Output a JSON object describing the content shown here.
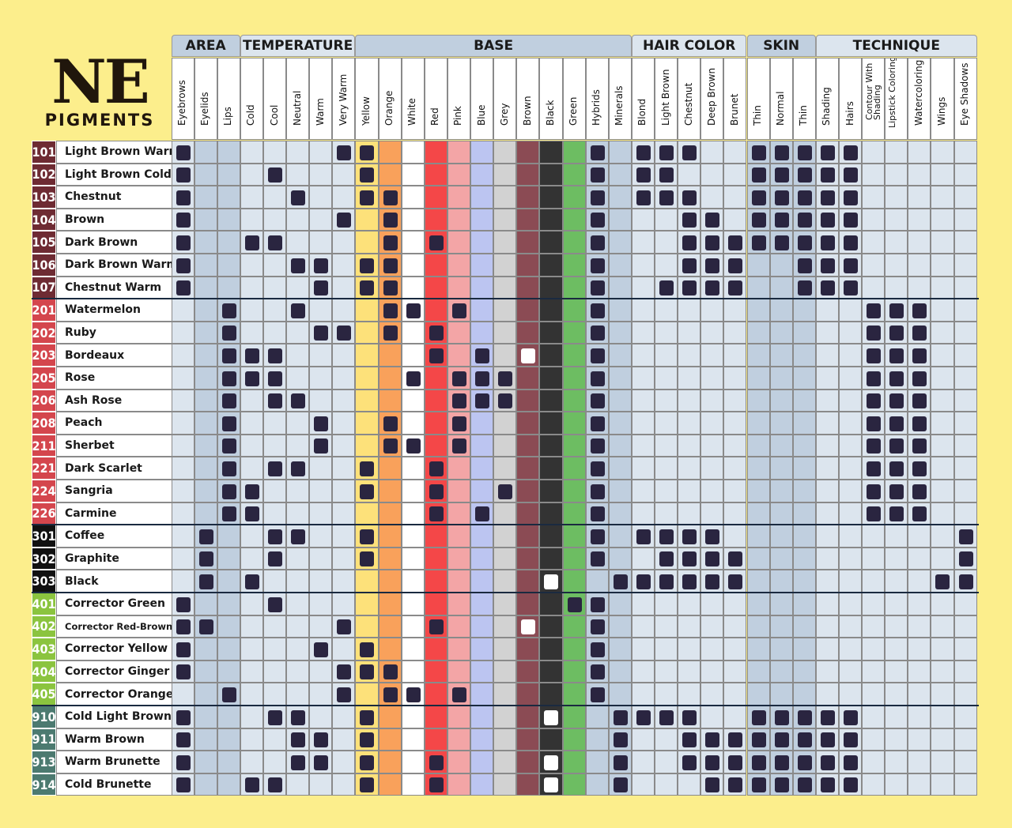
{
  "logo": {
    "title": "NE",
    "subtitle": "PIGMENTS"
  },
  "groups": [
    {
      "label": "AREA",
      "span": 3,
      "bg": "#c0cfdf"
    },
    {
      "label": "TEMPERATURE",
      "span": 5,
      "bg": "#dce5ee"
    },
    {
      "label": "BASE",
      "span": 12,
      "bg": "#c0cfdf"
    },
    {
      "label": "HAIR COLOR",
      "span": 5,
      "bg": "#dce5ee"
    },
    {
      "label": "SKIN",
      "span": 3,
      "bg": "#c0cfdf"
    },
    {
      "label": "TECHNIQUE",
      "span": 7,
      "bg": "#dce5ee"
    }
  ],
  "columns": [
    {
      "label": "Eyebrows",
      "bg": "#dce5ee"
    },
    {
      "label": "Eyelids",
      "bg": "#c0cfdf"
    },
    {
      "label": "Lips",
      "bg": "#c0cfdf"
    },
    {
      "label": "Cold",
      "bg": "#dce5ee"
    },
    {
      "label": "Cool",
      "bg": "#dce5ee"
    },
    {
      "label": "Neutral",
      "bg": "#dce5ee"
    },
    {
      "label": "Warm",
      "bg": "#dce5ee"
    },
    {
      "label": "Very Warm",
      "bg": "#dce5ee"
    },
    {
      "label": "Yellow",
      "bg": "#fde17a"
    },
    {
      "label": "Orange",
      "bg": "#f9a15b"
    },
    {
      "label": "White",
      "bg": "#ffffff"
    },
    {
      "label": "Red",
      "bg": "#f44748"
    },
    {
      "label": "Pink",
      "bg": "#f3a5a6"
    },
    {
      "label": "Blue",
      "bg": "#bcc5f1"
    },
    {
      "label": "Grey",
      "bg": "#d2d2d2"
    },
    {
      "label": "Brown",
      "bg": "#8b4b54"
    },
    {
      "label": "Black",
      "bg": "#333333"
    },
    {
      "label": "Green",
      "bg": "#6dbd62"
    },
    {
      "label": "Hybrids",
      "bg": "#c0cfdf"
    },
    {
      "label": "Minerals",
      "bg": "#c0cfdf"
    },
    {
      "label": "Blond",
      "bg": "#dce5ee"
    },
    {
      "label": "Light Brown",
      "bg": "#dce5ee"
    },
    {
      "label": "Chestnut",
      "bg": "#dce5ee"
    },
    {
      "label": "Deep Brown",
      "bg": "#dce5ee"
    },
    {
      "label": "Brunet",
      "bg": "#dce5ee"
    },
    {
      "label": "Thin",
      "bg": "#c0cfdf"
    },
    {
      "label": "Normal",
      "bg": "#c0cfdf"
    },
    {
      "label": "Thin",
      "bg": "#c0cfdf"
    },
    {
      "label": "Shading",
      "bg": "#dce5ee"
    },
    {
      "label": "Hairs",
      "bg": "#dce5ee"
    },
    {
      "label": "Contour With Shading",
      "bg": "#dce5ee"
    },
    {
      "label": "Lipstick Coloring",
      "bg": "#dce5ee"
    },
    {
      "label": "Watercoloring",
      "bg": "#dce5ee"
    },
    {
      "label": "Wings",
      "bg": "#dce5ee"
    },
    {
      "label": "Eye Shadows",
      "bg": "#dce5ee"
    }
  ],
  "rows": [
    {
      "num": "101",
      "name": "Light Brown Warm",
      "color": "#6e2b33",
      "marks": [
        0,
        7,
        8,
        18,
        20,
        21,
        22,
        25,
        26,
        27,
        28,
        29
      ],
      "white": []
    },
    {
      "num": "102",
      "name": "Light Brown Cold",
      "color": "#6e2b33",
      "marks": [
        0,
        4,
        8,
        18,
        20,
        21,
        25,
        26,
        27,
        28,
        29
      ],
      "white": []
    },
    {
      "num": "103",
      "name": "Chestnut",
      "color": "#6e2b33",
      "marks": [
        0,
        5,
        8,
        9,
        18,
        20,
        21,
        22,
        25,
        26,
        27,
        28,
        29
      ],
      "white": []
    },
    {
      "num": "104",
      "name": "Brown",
      "color": "#6e2b33",
      "marks": [
        0,
        7,
        9,
        18,
        22,
        23,
        25,
        26,
        27,
        28,
        29
      ],
      "white": []
    },
    {
      "num": "105",
      "name": "Dark Brown",
      "color": "#6e2b33",
      "marks": [
        0,
        3,
        4,
        9,
        11,
        18,
        22,
        23,
        24,
        25,
        26,
        27,
        28,
        29
      ],
      "white": []
    },
    {
      "num": "106",
      "name": "Dark Brown Warm",
      "color": "#6e2b33",
      "marks": [
        0,
        5,
        6,
        8,
        9,
        18,
        22,
        23,
        24,
        27,
        28,
        29
      ],
      "white": []
    },
    {
      "num": "107",
      "name": "Chestnut Warm",
      "color": "#6e2b33",
      "marks": [
        0,
        6,
        8,
        9,
        18,
        21,
        22,
        23,
        24,
        27,
        28,
        29
      ],
      "white": []
    },
    {
      "num": "201",
      "name": "Watermelon",
      "color": "#d4464d",
      "marks": [
        2,
        5,
        9,
        10,
        12,
        18,
        30,
        31,
        32
      ],
      "white": []
    },
    {
      "num": "202",
      "name": "Ruby",
      "color": "#d4464d",
      "marks": [
        2,
        6,
        7,
        9,
        11,
        18,
        30,
        31,
        32
      ],
      "white": []
    },
    {
      "num": "203",
      "name": "Bordeaux",
      "color": "#d4464d",
      "marks": [
        2,
        3,
        4,
        11,
        13,
        18,
        30,
        31,
        32
      ],
      "white": [
        15
      ]
    },
    {
      "num": "205",
      "name": "Rose",
      "color": "#d4464d",
      "marks": [
        2,
        3,
        4,
        10,
        12,
        13,
        14,
        18,
        30,
        31,
        32
      ],
      "white": []
    },
    {
      "num": "206",
      "name": "Ash Rose",
      "color": "#d4464d",
      "marks": [
        2,
        4,
        5,
        12,
        13,
        14,
        18,
        30,
        31,
        32
      ],
      "white": []
    },
    {
      "num": "208",
      "name": "Peach",
      "color": "#d4464d",
      "marks": [
        2,
        6,
        9,
        12,
        18,
        30,
        31,
        32
      ],
      "white": []
    },
    {
      "num": "211",
      "name": "Sherbet",
      "color": "#d4464d",
      "marks": [
        2,
        6,
        9,
        10,
        12,
        18,
        30,
        31,
        32
      ],
      "white": []
    },
    {
      "num": "221",
      "name": "Dark Scarlet",
      "color": "#d4464d",
      "marks": [
        2,
        4,
        5,
        8,
        11,
        18,
        30,
        31,
        32
      ],
      "white": []
    },
    {
      "num": "224",
      "name": "Sangria",
      "color": "#d4464d",
      "marks": [
        2,
        3,
        8,
        11,
        14,
        18,
        30,
        31,
        32
      ],
      "white": []
    },
    {
      "num": "226",
      "name": "Carmine",
      "color": "#d4464d",
      "marks": [
        2,
        3,
        11,
        13,
        18,
        30,
        31,
        32
      ],
      "white": []
    },
    {
      "num": "301",
      "name": "Coffee",
      "color": "#111111",
      "marks": [
        1,
        4,
        5,
        8,
        18,
        20,
        21,
        22,
        23,
        34
      ],
      "white": []
    },
    {
      "num": "302",
      "name": "Graphite",
      "color": "#111111",
      "marks": [
        1,
        4,
        8,
        18,
        21,
        22,
        23,
        24,
        34
      ],
      "white": []
    },
    {
      "num": "303",
      "name": "Black",
      "color": "#111111",
      "marks": [
        1,
        3,
        19,
        20,
        21,
        22,
        23,
        24,
        33,
        34
      ],
      "white": [
        16
      ]
    },
    {
      "num": "401",
      "name": "Corrector Green",
      "color": "#8bc43f",
      "marks": [
        0,
        4,
        17,
        18
      ],
      "white": []
    },
    {
      "num": "402",
      "name": "Corrector Red-Brown",
      "color": "#8bc43f",
      "marks": [
        0,
        1,
        7,
        11,
        18
      ],
      "white": [
        15
      ]
    },
    {
      "num": "403",
      "name": "Corrector Yellow",
      "color": "#8bc43f",
      "marks": [
        0,
        6,
        8,
        18
      ],
      "white": []
    },
    {
      "num": "404",
      "name": "Corrector Ginger",
      "color": "#8bc43f",
      "marks": [
        0,
        7,
        8,
        9,
        18
      ],
      "white": []
    },
    {
      "num": "405",
      "name": "Corrector Orange",
      "color": "#8bc43f",
      "marks": [
        2,
        7,
        9,
        10,
        12,
        18
      ],
      "white": []
    },
    {
      "num": "910",
      "name": "Cold Light Brown",
      "color": "#4c7a70",
      "marks": [
        0,
        4,
        5,
        8,
        19,
        20,
        21,
        22,
        25,
        26,
        27,
        28,
        29
      ],
      "white": [
        16
      ]
    },
    {
      "num": "911",
      "name": "Warm Brown",
      "color": "#4c7a70",
      "marks": [
        0,
        5,
        6,
        8,
        19,
        22,
        23,
        24,
        25,
        26,
        27,
        28,
        29
      ],
      "white": []
    },
    {
      "num": "913",
      "name": "Warm Brunette",
      "color": "#4c7a70",
      "marks": [
        0,
        5,
        6,
        8,
        11,
        19,
        22,
        23,
        24,
        25,
        26,
        27,
        28,
        29
      ],
      "white": [
        16
      ]
    },
    {
      "num": "914",
      "name": "Cold Brunette",
      "color": "#4c7a70",
      "marks": [
        0,
        3,
        4,
        8,
        11,
        19,
        23,
        24,
        25,
        26,
        27,
        28,
        29
      ],
      "white": [
        16
      ]
    }
  ]
}
